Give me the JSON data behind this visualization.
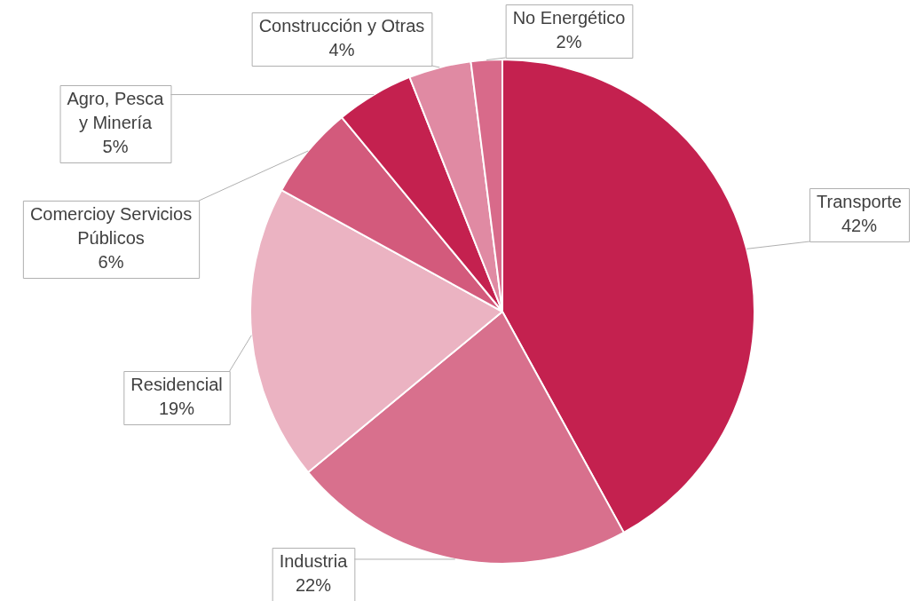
{
  "chart_data": {
    "type": "pie",
    "categories": [
      "Transporte",
      "Industria",
      "Residencial",
      "Comercioy Servicios Públicos",
      "Agro, Pesca y Minería",
      "Construcción y Otras",
      "No Energético"
    ],
    "values": [
      42,
      22,
      19,
      6,
      5,
      4,
      2
    ],
    "colors": [
      "#c4214f",
      "#d8708d",
      "#ebb3c2",
      "#d35a7c",
      "#c4214f",
      "#e08aa3",
      "#d86a8a"
    ],
    "value_labels": [
      "42%",
      "22%",
      "19%",
      "6%",
      "5%",
      "4%",
      "2%"
    ],
    "legend": false
  }
}
